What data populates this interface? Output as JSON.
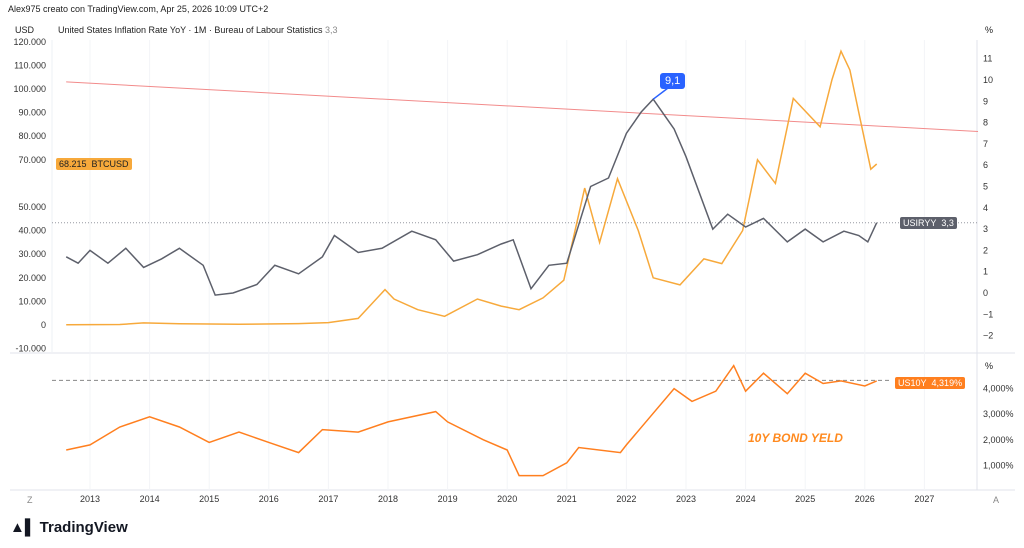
{
  "header": {
    "credit": "Alex975 creato con TradingView.com, Apr 25, 2026 10:09 UTC+2",
    "left_unit": "USD",
    "series_title": "United States Inflation Rate YoY · 1M · Bureau of Labour Statistics",
    "series_value": "3,3",
    "right_unit": "%",
    "lower_unit": "%"
  },
  "tags": {
    "btc_price": "68.215",
    "btc_symbol": "BTCUSD",
    "cpi_symbol": "USIRYY",
    "cpi_value": "3,3",
    "bond_symbol": "US10Y",
    "bond_value": "4,319%",
    "peak_label": "9,1"
  },
  "annotation": "10Y BOND YELD",
  "footer": {
    "logo": "TradingView",
    "left_btn": "Z",
    "right_btn": "A"
  },
  "colors": {
    "btc": "#f7a93b",
    "cpi": "#5d606b",
    "bond": "#ff7f1f",
    "trend": "#f28b8b",
    "peak": "#2962ff"
  },
  "chart_data": {
    "type": "line",
    "x_ticks": [
      "2013",
      "2014",
      "2015",
      "2016",
      "2017",
      "2018",
      "2019",
      "2020",
      "2021",
      "2022",
      "2023",
      "2024",
      "2025",
      "2026",
      "2027"
    ],
    "left_axis": {
      "ticks": [
        "120.000",
        "110.000",
        "100.000",
        "90.000",
        "80.000",
        "70.000",
        "50.000",
        "40.000",
        "30.000",
        "20.000",
        "10.000",
        "0",
        "-10.000"
      ],
      "ylim": [
        -10000,
        120000
      ]
    },
    "right_axis": {
      "ticks": [
        "11",
        "10",
        "9",
        "8",
        "7",
        "6",
        "5",
        "4",
        "3",
        "2",
        "1",
        "0",
        "−1",
        "−2"
      ],
      "ylim": [
        -2,
        11
      ]
    },
    "lower_axis": {
      "ticks": [
        "4,000%",
        "3,000%",
        "2,000%",
        "1,000%"
      ],
      "ylim": [
        0,
        5
      ]
    },
    "series": [
      {
        "name": "BTCUSD",
        "axis": "left",
        "x": [
          2012.6,
          2013.5,
          2013.9,
          2014.5,
          2015.5,
          2016.5,
          2017.0,
          2017.5,
          2017.95,
          2018.1,
          2018.5,
          2018.95,
          2019.5,
          2019.9,
          2020.2,
          2020.6,
          2020.95,
          2021.3,
          2021.55,
          2021.85,
          2022.2,
          2022.45,
          2022.9,
          2023.3,
          2023.6,
          2023.95,
          2024.2,
          2024.5,
          2024.8,
          2024.95,
          2025.25,
          2025.45,
          2025.6,
          2025.75,
          2025.9,
          2026.1,
          2026.2
        ],
        "y": [
          100,
          200,
          900,
          500,
          300,
          600,
          1000,
          2800,
          15000,
          11000,
          6500,
          3700,
          11000,
          8000,
          6500,
          11500,
          19000,
          58000,
          35000,
          62000,
          40000,
          20000,
          17000,
          28000,
          26000,
          40000,
          70000,
          60000,
          96000,
          92000,
          84000,
          104000,
          116000,
          108000,
          90000,
          66000,
          68215
        ]
      },
      {
        "name": "USIRYY",
        "axis": "right",
        "x": [
          2012.6,
          2012.8,
          2013.0,
          2013.3,
          2013.6,
          2013.9,
          2014.2,
          2014.5,
          2014.9,
          2015.1,
          2015.4,
          2015.8,
          2016.1,
          2016.5,
          2016.9,
          2017.1,
          2017.5,
          2017.9,
          2018.4,
          2018.8,
          2019.1,
          2019.5,
          2019.9,
          2020.1,
          2020.4,
          2020.7,
          2021.0,
          2021.4,
          2021.7,
          2022.0,
          2022.25,
          2022.45,
          2022.8,
          2023.0,
          2023.45,
          2023.7,
          2024.0,
          2024.3,
          2024.7,
          2025.0,
          2025.3,
          2025.65,
          2025.9,
          2026.05,
          2026.2
        ],
        "y": [
          1.7,
          1.4,
          2.0,
          1.4,
          2.1,
          1.2,
          1.6,
          2.1,
          1.3,
          -0.1,
          0.0,
          0.4,
          1.3,
          0.9,
          1.7,
          2.7,
          1.9,
          2.1,
          2.9,
          2.5,
          1.5,
          1.8,
          2.3,
          2.5,
          0.2,
          1.3,
          1.4,
          5.0,
          5.4,
          7.5,
          8.5,
          9.1,
          7.7,
          6.4,
          3.0,
          3.7,
          3.1,
          3.5,
          2.4,
          3.0,
          2.4,
          2.9,
          2.7,
          2.4,
          3.3
        ]
      },
      {
        "name": "US10Y",
        "axis": "lower",
        "x": [
          2012.6,
          2013.0,
          2013.5,
          2014.0,
          2014.5,
          2015.0,
          2015.5,
          2016.0,
          2016.5,
          2016.9,
          2017.5,
          2018.0,
          2018.8,
          2019.0,
          2019.6,
          2020.0,
          2020.2,
          2020.6,
          2021.0,
          2021.2,
          2021.9,
          2022.0,
          2022.4,
          2022.8,
          2023.1,
          2023.5,
          2023.8,
          2024.0,
          2024.3,
          2024.7,
          2025.0,
          2025.3,
          2025.6,
          2026.0,
          2026.2
        ],
        "y": [
          1.6,
          1.8,
          2.5,
          2.9,
          2.5,
          1.9,
          2.3,
          1.9,
          1.5,
          2.4,
          2.3,
          2.7,
          3.1,
          2.7,
          2.0,
          1.6,
          0.6,
          0.6,
          1.1,
          1.7,
          1.5,
          1.8,
          2.9,
          4.0,
          3.5,
          3.9,
          4.9,
          3.9,
          4.6,
          3.8,
          4.6,
          4.2,
          4.3,
          4.1,
          4.3
        ]
      }
    ],
    "trendline": {
      "axis": "left",
      "x": [
        2012.6,
        2027.9
      ],
      "y": [
        103000,
        82000
      ]
    }
  }
}
